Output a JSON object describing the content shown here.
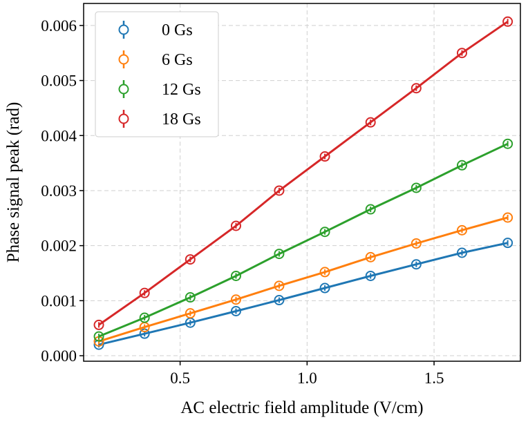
{
  "chart_data": {
    "type": "line",
    "title": "",
    "xlabel": "AC electric field amplitude (V/cm)",
    "ylabel": "Phase signal peak (rad)",
    "xlim": [
      0.12,
      1.84
    ],
    "ylim": [
      -0.0001,
      0.0064
    ],
    "xticks": [
      0.5,
      1.0,
      1.5
    ],
    "xtick_labels": [
      "0.5",
      "1.0",
      "1.5"
    ],
    "yticks": [
      0.0,
      0.001,
      0.002,
      0.003,
      0.004,
      0.005,
      0.006
    ],
    "ytick_labels": [
      "0.000",
      "0.001",
      "0.002",
      "0.003",
      "0.004",
      "0.005",
      "0.006"
    ],
    "grid": true,
    "legend_position": "top-left",
    "x": [
      0.18,
      0.36,
      0.54,
      0.72,
      0.89,
      1.07,
      1.25,
      1.43,
      1.61,
      1.79
    ],
    "series": [
      {
        "name": "0  Gs",
        "color": "#1f77b4",
        "values": [
          0.0002,
          0.0004,
          0.0006,
          0.00081,
          0.00101,
          0.00123,
          0.00145,
          0.00166,
          0.00187,
          0.00205
        ]
      },
      {
        "name": "6  Gs",
        "color": "#ff7f0e",
        "values": [
          0.00026,
          0.00052,
          0.00077,
          0.00102,
          0.00127,
          0.00152,
          0.00179,
          0.00204,
          0.00228,
          0.00251
        ]
      },
      {
        "name": "12 Gs",
        "color": "#2ca02c",
        "values": [
          0.00035,
          0.00069,
          0.00106,
          0.00145,
          0.00185,
          0.00225,
          0.00266,
          0.00305,
          0.00346,
          0.00385
        ]
      },
      {
        "name": "18 Gs",
        "color": "#d62728",
        "values": [
          0.00056,
          0.00114,
          0.00175,
          0.00236,
          0.003,
          0.00362,
          0.00424,
          0.00486,
          0.0055,
          0.00607
        ]
      }
    ]
  }
}
